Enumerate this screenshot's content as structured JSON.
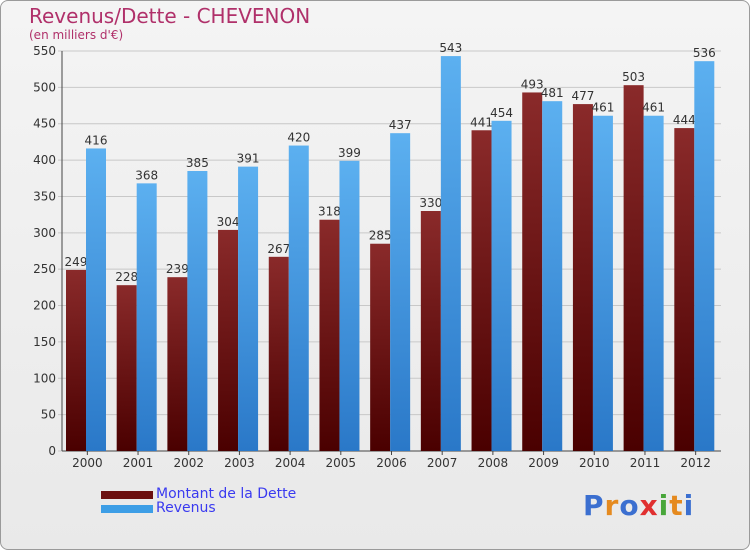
{
  "chart_data": {
    "type": "bar",
    "title": "Revenus/Dette - CHEVENON",
    "subtitle": "(en milliers d'€)",
    "categories": [
      "2000",
      "2001",
      "2002",
      "2003",
      "2004",
      "2005",
      "2006",
      "2007",
      "2008",
      "2009",
      "2010",
      "2011",
      "2012"
    ],
    "series": [
      {
        "name": "Montant de la Dette",
        "color": "#6b0f0f",
        "values": [
          249,
          228,
          239,
          304,
          267,
          318,
          285,
          330,
          441,
          493,
          477,
          503,
          444
        ]
      },
      {
        "name": "Revenus",
        "color": "#3d9ee6",
        "values": [
          416,
          368,
          385,
          391,
          420,
          399,
          437,
          543,
          454,
          481,
          461,
          461,
          536
        ]
      }
    ],
    "ylim": [
      0,
      550
    ],
    "yticks": [
      0,
      50,
      100,
      150,
      200,
      250,
      300,
      350,
      400,
      450,
      500,
      550
    ],
    "grid": true,
    "legend": "bottom-left"
  },
  "logo": {
    "letters": [
      "P",
      "r",
      "o",
      "x",
      "i",
      "t",
      "i"
    ],
    "colors": [
      "#3b6fd0",
      "#e58a1f",
      "#3b6fd0",
      "#e02f2f",
      "#48a63a",
      "#e58a1f",
      "#3b6fd0"
    ]
  }
}
